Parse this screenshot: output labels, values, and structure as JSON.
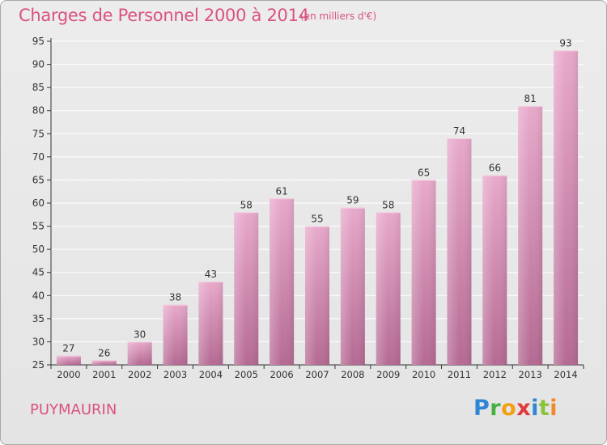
{
  "header": {
    "title": "Charges de Personnel 2000 à 2014",
    "subtitle": "(en milliers d'€)"
  },
  "footer": {
    "place": "PUYMAURIN",
    "logo": "Proxiti"
  },
  "colors": {
    "title": "#d9537e",
    "bar_top": "#e8a9cb",
    "bar_bottom": "#b56a93",
    "axis": "#333333"
  },
  "chart_data": {
    "type": "bar",
    "categories": [
      "2000",
      "2001",
      "2002",
      "2003",
      "2004",
      "2005",
      "2006",
      "2007",
      "2008",
      "2009",
      "2010",
      "2011",
      "2012",
      "2013",
      "2014"
    ],
    "values": [
      27,
      26,
      30,
      38,
      43,
      58,
      61,
      55,
      59,
      58,
      65,
      74,
      66,
      81,
      93
    ],
    "title": "Charges de Personnel 2000 à 2014",
    "subtitle": "(en milliers d'€)",
    "xlabel": "",
    "ylabel": "",
    "ylim": [
      25,
      95
    ],
    "yticks": [
      25,
      30,
      35,
      40,
      45,
      50,
      55,
      60,
      65,
      70,
      75,
      80,
      85,
      90,
      95
    ],
    "grid": true,
    "legend": "none"
  }
}
